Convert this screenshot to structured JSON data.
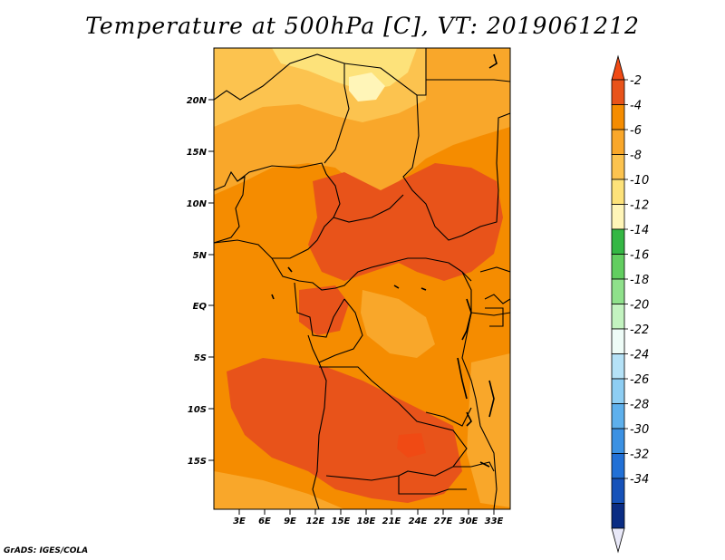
{
  "title": "Temperature at 500hPa [C], VT: 2019061212",
  "credit": "GrADS: IGES/COLA",
  "map": {
    "variable": "Temperature",
    "level": "500hPa",
    "units": "C",
    "valid_time": "2019061212",
    "lat_labels": [
      "20N",
      "15N",
      "10N",
      "5N",
      "EQ",
      "5S",
      "10S",
      "15S"
    ],
    "lon_labels": [
      "3E",
      "6E",
      "9E",
      "12E",
      "15E",
      "18E",
      "21E",
      "24E",
      "27E",
      "30E",
      "33E"
    ]
  },
  "colorbar": {
    "labels": [
      "-2",
      "-4",
      "-6",
      "-8",
      "-10",
      "-12",
      "-14",
      "-16",
      "-18",
      "-20",
      "-22",
      "-24",
      "-26",
      "-28",
      "-30",
      "-32",
      "-34"
    ],
    "colors": [
      "#e8531a",
      "#f58c00",
      "#f9a72a",
      "#fcc34f",
      "#fde27a",
      "#fff5b8",
      "#34b744",
      "#62ce60",
      "#8fe18b",
      "#c3f3c0",
      "#eefcf7",
      "#b5e2f7",
      "#8ecef3",
      "#5eb0ec",
      "#3b91e3",
      "#2170d6",
      "#1652b9",
      "#0a2c83"
    ],
    "cap_colors": {
      "top": "#f04a14",
      "bottom": "#e8e8f8"
    }
  }
}
